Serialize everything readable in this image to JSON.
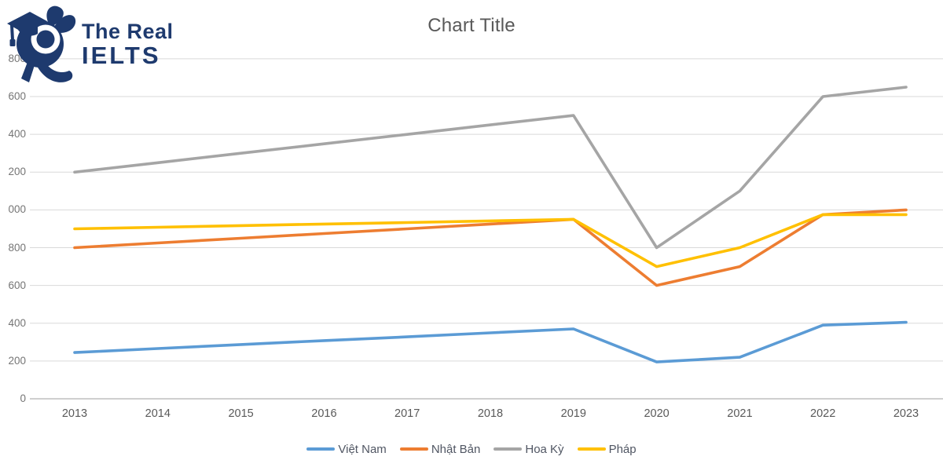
{
  "logo": {
    "line1": "The Real",
    "line2": "IELTS",
    "color": "#1e3a6e",
    "mascot": "running-rabbit-with-graduation-cap-and-lens"
  },
  "chart_data": {
    "type": "line",
    "title": "Chart Title",
    "x_categories": [
      "2013",
      "2014",
      "2015",
      "2016",
      "2017",
      "2018",
      "2019",
      "2020",
      "2021",
      "2022",
      "2023"
    ],
    "series": [
      {
        "name": "Việt Nam",
        "color": "#5B9BD5",
        "values": [
          245,
          266,
          287,
          308,
          328,
          349,
          370,
          195,
          220,
          390,
          405
        ]
      },
      {
        "name": "Nhật Bản",
        "color": "#ED7D31",
        "values": [
          800,
          825,
          850,
          875,
          900,
          925,
          950,
          600,
          700,
          975,
          1000
        ]
      },
      {
        "name": "Hoa Kỳ",
        "color": "#A5A5A5",
        "values": [
          1200,
          1250,
          1300,
          1350,
          1400,
          1450,
          1500,
          800,
          1100,
          1600,
          1650
        ]
      },
      {
        "name": "Pháp",
        "color": "#FFC000",
        "values": [
          900,
          908,
          917,
          925,
          933,
          942,
          950,
          700,
          800,
          975,
          975
        ]
      }
    ],
    "ylim": [
      0,
      1800
    ],
    "y_tick_step": 200,
    "y_tick_labels_displayed_top_down": [
      "800",
      "600",
      "400",
      "200",
      "000",
      "800",
      "600",
      "400",
      "200",
      "0"
    ],
    "grid": true,
    "legend_position": "bottom",
    "colors": {
      "gridline": "#d9d9d9",
      "axis_line": "#bfbfbf",
      "title_text": "#595959",
      "x_tick_text": "#595959",
      "y_tick_text": "#757575",
      "legend_text": "#505663"
    }
  }
}
